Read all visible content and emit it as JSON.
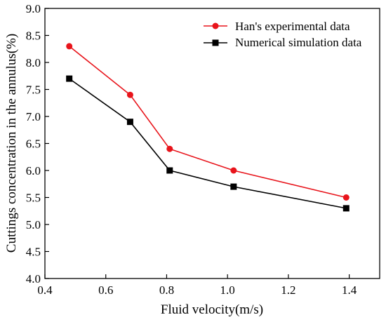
{
  "chart_data": {
    "type": "line",
    "title": "",
    "xlabel": "Fluid velocity(m/s)",
    "ylabel": "Cuttings concentration in the annulus(%)",
    "xlim": [
      0.4,
      1.5
    ],
    "ylim": [
      4.0,
      9.0
    ],
    "xticks": [
      "0.4",
      "0.6",
      "0.8",
      "1.0",
      "1.2",
      "1.4"
    ],
    "yticks": [
      "4.0",
      "4.5",
      "5.0",
      "5.5",
      "6.0",
      "6.5",
      "7.0",
      "7.5",
      "8.0",
      "8.5",
      "9.0"
    ],
    "grid": false,
    "legend_position": "top-right",
    "series": [
      {
        "name": "Han's experimental data",
        "color": "#e8141b",
        "marker": "circle",
        "x": [
          0.48,
          0.68,
          0.81,
          1.02,
          1.39
        ],
        "y": [
          8.3,
          7.4,
          6.4,
          6.0,
          5.5
        ]
      },
      {
        "name": "Numerical simulation data",
        "color": "#000000",
        "marker": "square",
        "x": [
          0.48,
          0.68,
          0.81,
          1.02,
          1.39
        ],
        "y": [
          7.7,
          6.9,
          6.0,
          5.7,
          5.3
        ]
      }
    ]
  }
}
